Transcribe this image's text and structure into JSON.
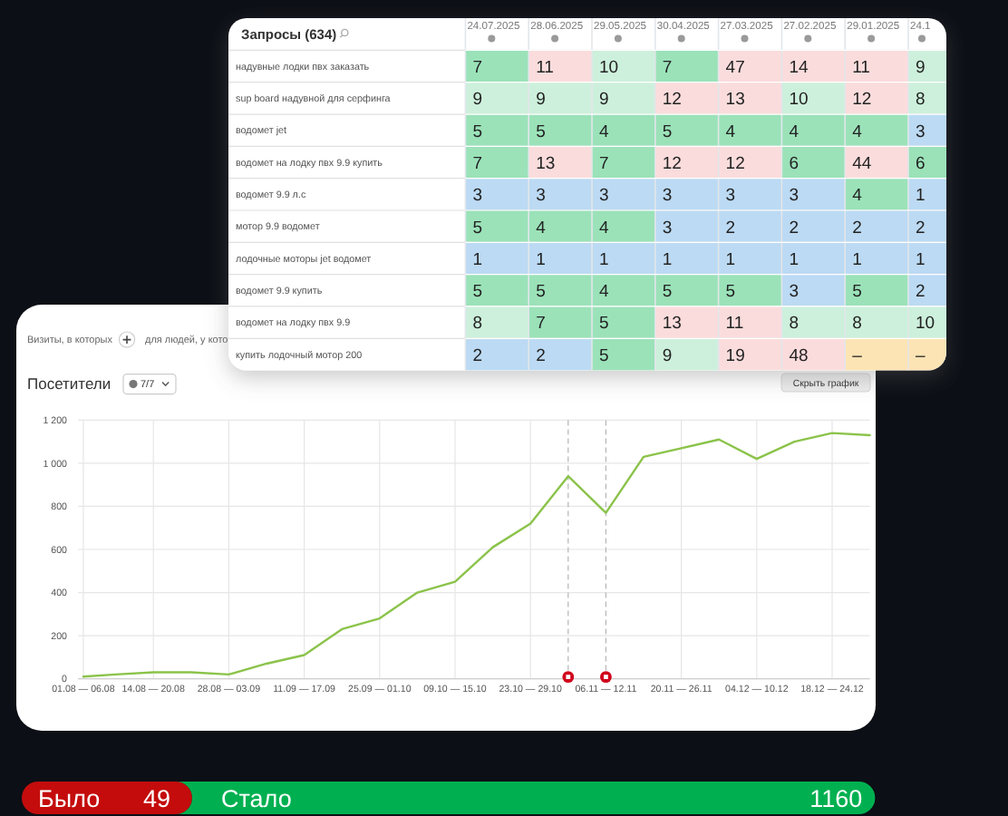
{
  "chart_data": [
    {
      "type": "heatmap",
      "title": "Запросы (634)",
      "categories": [
        "24.07.2025",
        "28.06.2025",
        "29.05.2025",
        "30.04.2025",
        "27.03.2025",
        "27.02.2025",
        "29.01.2025",
        "24.1"
      ],
      "y_categories": [
        "надувные лодки пвх заказать",
        "sup board надувной для серфинга",
        "водомет jet",
        "водомет на лодку пвх 9.9 купить",
        "водомет 9.9 л.с",
        "мотор 9.9 водомет",
        "лодочные моторы jet водомет",
        "водомет 9.9 купить",
        "водомет на лодку пвх 9.9",
        "купить лодочный мотор 200"
      ],
      "cells": [
        [
          7,
          11,
          10,
          7,
          47,
          14,
          11,
          9
        ],
        [
          9,
          9,
          9,
          12,
          13,
          10,
          12,
          8
        ],
        [
          5,
          5,
          4,
          5,
          4,
          4,
          4,
          3
        ],
        [
          7,
          13,
          7,
          12,
          12,
          6,
          44,
          6
        ],
        [
          3,
          3,
          3,
          3,
          3,
          3,
          4,
          1
        ],
        [
          5,
          4,
          4,
          3,
          2,
          2,
          2,
          2
        ],
        [
          1,
          1,
          1,
          1,
          1,
          1,
          1,
          1
        ],
        [
          5,
          5,
          4,
          5,
          5,
          3,
          5,
          2
        ],
        [
          8,
          7,
          5,
          13,
          11,
          8,
          8,
          10
        ],
        [
          2,
          2,
          5,
          9,
          19,
          48,
          null,
          null
        ]
      ],
      "cell_labels": [
        [
          "7",
          "11",
          "10",
          "7",
          "47",
          "14",
          "11",
          "9"
        ],
        [
          "9",
          "9",
          "9",
          "12",
          "13",
          "10",
          "12",
          "8"
        ],
        [
          "5",
          "5",
          "4",
          "5",
          "4",
          "4",
          "4",
          "3"
        ],
        [
          "7",
          "13",
          "7",
          "12",
          "12",
          "6",
          "44",
          "6"
        ],
        [
          "3",
          "3",
          "3",
          "3",
          "3",
          "3",
          "4",
          "1"
        ],
        [
          "5",
          "4",
          "4",
          "3",
          "2",
          "2",
          "2",
          "2"
        ],
        [
          "1",
          "1",
          "1",
          "1",
          "1",
          "1",
          "1",
          "1"
        ],
        [
          "5",
          "5",
          "4",
          "5",
          "5",
          "3",
          "5",
          "2"
        ],
        [
          "8",
          "7",
          "5",
          "13",
          "11",
          "8",
          "8",
          "10"
        ],
        [
          "2",
          "2",
          "5",
          "9",
          "19",
          "48",
          "–",
          "–"
        ]
      ]
    },
    {
      "type": "line",
      "title": "Посетители",
      "annotations": [
        "Визиты, в которых",
        "для людей, у кото",
        "7/7",
        "Скрыть график"
      ],
      "x": [
        "--08-01",
        "--08-07",
        "--08-14",
        "--08-21",
        "--08-28",
        "--09-04",
        "--09-11",
        "--09-18",
        "--09-25",
        "--10-02",
        "--10-09",
        "--10-16",
        "--10-23",
        "--10-30",
        "--11-06",
        "--11-13",
        "--11-20",
        "--11-27",
        "--12-04",
        "--12-11",
        "--12-18",
        "--12-25"
      ],
      "series": [
        {
          "color": "#8bc34a",
          "values": [
            10,
            20,
            30,
            30,
            20,
            70,
            110,
            230,
            280,
            400,
            450,
            610,
            720,
            940,
            770,
            1030,
            1070,
            1110,
            1020,
            1100,
            1140,
            1130
          ]
        }
      ],
      "xlim": [
        "--07-31",
        "--12-25"
      ],
      "xticks": [
        {
          "value": "--08-01",
          "label": "01.08 — 06.08"
        },
        {
          "value": "--08-14",
          "label": "14.08 — 20.08"
        },
        {
          "value": "--08-28",
          "label": "28.08 — 03.09"
        },
        {
          "value": "--09-11",
          "label": "11.09 — 17.09"
        },
        {
          "value": "--09-25",
          "label": "25.09 — 01.10"
        },
        {
          "value": "--10-09",
          "label": "09.10 — 15.10"
        },
        {
          "value": "--10-23",
          "label": "23.10 — 29.10"
        },
        {
          "value": "--11-06",
          "label": "06.11 — 12.11"
        },
        {
          "value": "--11-20",
          "label": "20.11 — 26.11"
        },
        {
          "value": "--12-04",
          "label": "04.12 — 10.12"
        },
        {
          "value": "--12-18",
          "label": "18.12 — 24.12"
        }
      ],
      "ylim": [
        0,
        1200
      ],
      "yticks": [
        0,
        200,
        400,
        600,
        800,
        {
          "value": 1000,
          "label": "1 000"
        },
        {
          "value": 1200,
          "label": "1 200"
        }
      ],
      "grid": true,
      "ref_lines": [
        {
          "axis": "x",
          "value": "--10-30",
          "line_style": "dashed"
        },
        {
          "axis": "x",
          "value": "--11-06",
          "line_style": "dashed"
        }
      ]
    },
    {
      "type": "other",
      "categories": [
        "Было",
        "Стало"
      ],
      "values": [
        49,
        1160
      ],
      "colors": [
        "#c40c0c",
        "#00b050"
      ],
      "data_labels": true
    }
  ]
}
